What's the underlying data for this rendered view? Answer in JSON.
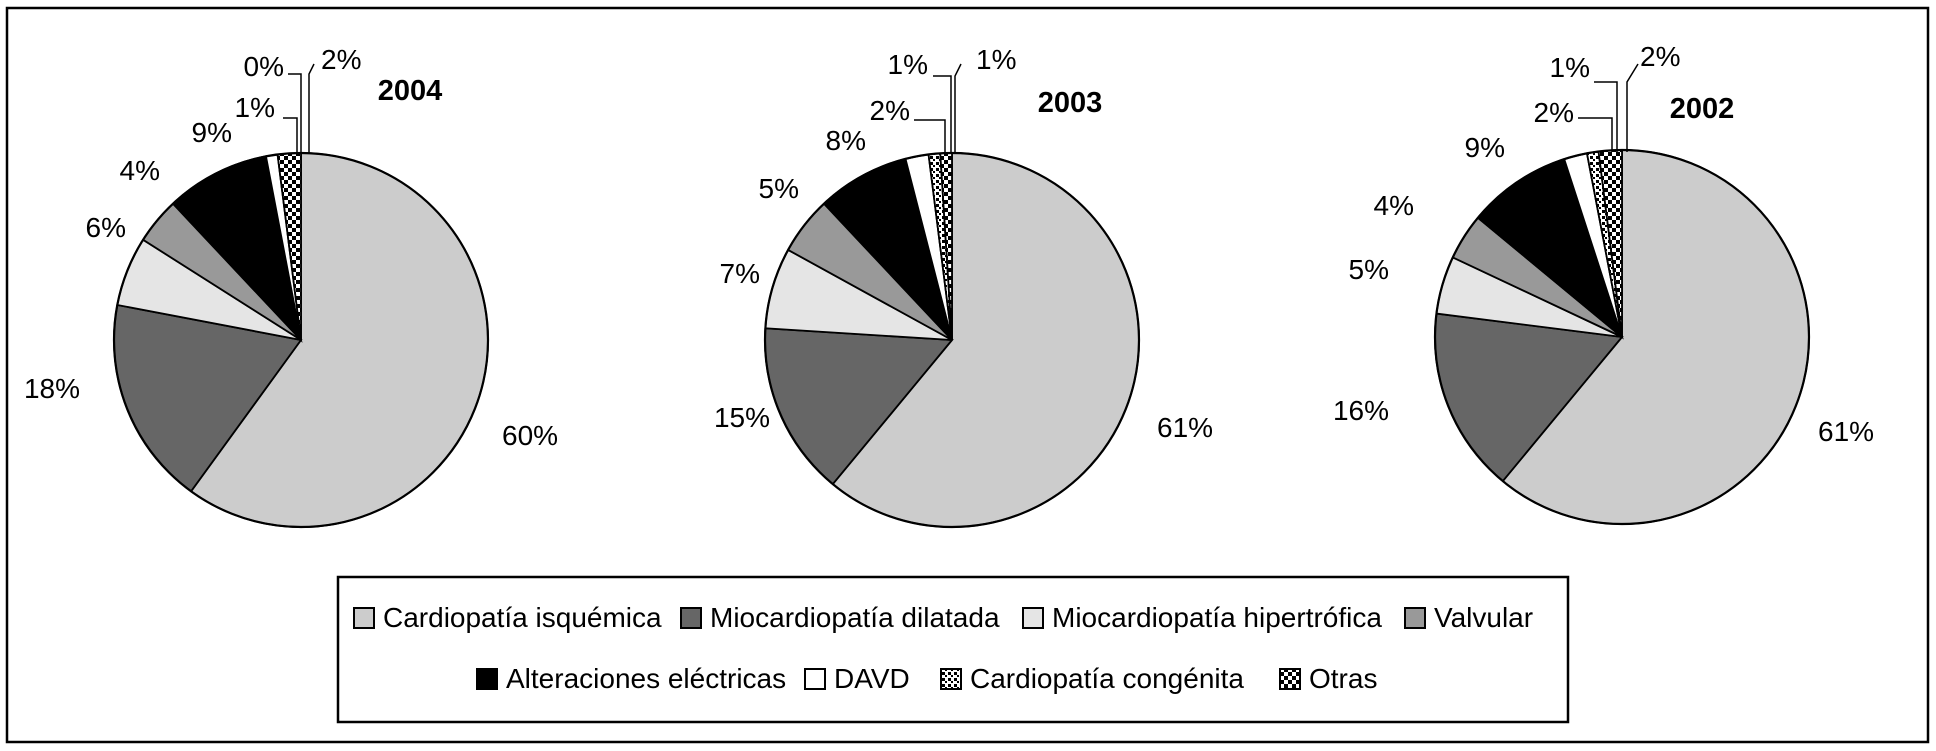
{
  "chart_data": [
    {
      "type": "pie",
      "title": "2004",
      "categories": [
        "Cardiopatía isquémica",
        "Miocardiopatía dilatada",
        "Miocardiopatía hipertrófica",
        "Valvular",
        "Alteraciones eléctricas",
        "DAVD",
        "Cardiopatía congénita",
        "Otras"
      ],
      "values": [
        60,
        18,
        6,
        4,
        9,
        1,
        0,
        2
      ],
      "labels": [
        "60%",
        "18%",
        "6%",
        "4%",
        "9%",
        "1%",
        "0%",
        "2%"
      ]
    },
    {
      "type": "pie",
      "title": "2003",
      "categories": [
        "Cardiopatía isquémica",
        "Miocardiopatía dilatada",
        "Miocardiopatía hipertrófica",
        "Valvular",
        "Alteraciones eléctricas",
        "DAVD",
        "Cardiopatía congénita",
        "Otras"
      ],
      "values": [
        61,
        15,
        7,
        5,
        8,
        2,
        1,
        1
      ],
      "labels": [
        "61%",
        "15%",
        "7%",
        "5%",
        "8%",
        "2%",
        "1%",
        "1%"
      ]
    },
    {
      "type": "pie",
      "title": "2002",
      "categories": [
        "Cardiopatía isquémica",
        "Miocardiopatía dilatada",
        "Miocardiopatía hipertrófica",
        "Valvular",
        "Alteraciones eléctricas",
        "DAVD",
        "Cardiopatía congénita",
        "Otras"
      ],
      "values": [
        61,
        16,
        5,
        4,
        9,
        2,
        1,
        2
      ],
      "labels": [
        "61%",
        "16%",
        "5%",
        "4%",
        "9%",
        "2%",
        "1%",
        "2%"
      ]
    }
  ],
  "legend": {
    "placement": "bottom",
    "entries": [
      {
        "label": "Cardiopatía isquémica",
        "fill": "#cccccc",
        "pattern": "solid"
      },
      {
        "label": "Miocardiopatía dilatada",
        "fill": "#666666",
        "pattern": "solid"
      },
      {
        "label": "Miocardiopatía hipertrófica",
        "fill": "#e5e5e5",
        "pattern": "solid"
      },
      {
        "label": "Valvular",
        "fill": "#999999",
        "pattern": "solid"
      },
      {
        "label": "Alteraciones eléctricas",
        "fill": "#000000",
        "pattern": "solid"
      },
      {
        "label": "DAVD",
        "fill": "#ffffff",
        "pattern": "solid"
      },
      {
        "label": "Cardiopatía congénita",
        "fill": "#ffffff",
        "pattern": "dots"
      },
      {
        "label": "Otras",
        "fill": "#ffffff",
        "pattern": "checker"
      }
    ]
  }
}
